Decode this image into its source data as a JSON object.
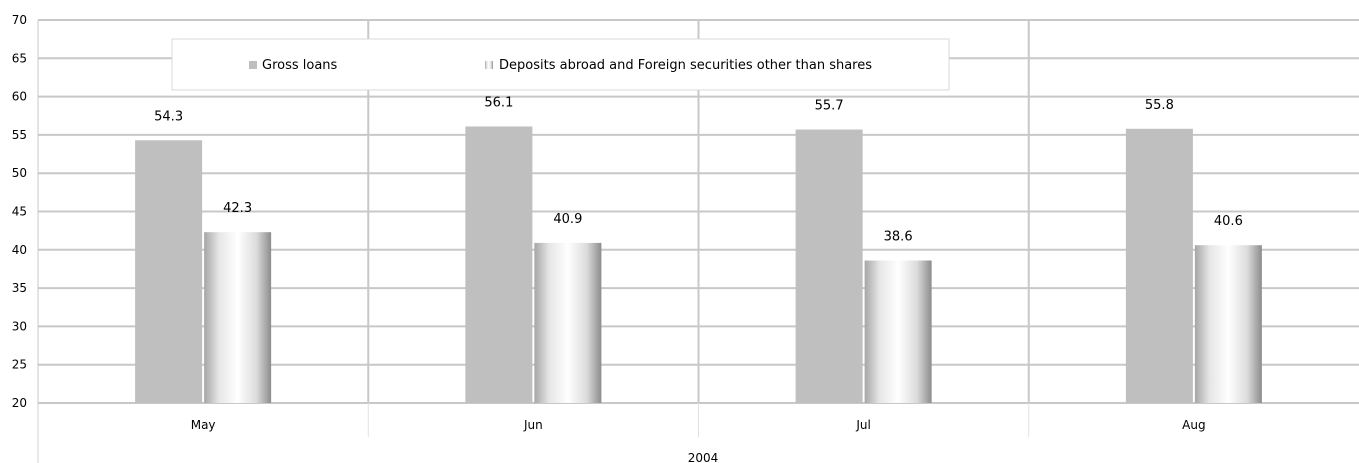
{
  "chart_data": {
    "type": "bar",
    "categories": [
      "May",
      "Jun",
      "Jul",
      "Aug"
    ],
    "group_label": "2004",
    "series": [
      {
        "name": "Gross loans",
        "values": [
          54.3,
          56.1,
          55.7,
          55.8
        ],
        "data_labels": [
          "54.3",
          "56.1",
          "55.7",
          "55.8"
        ],
        "color": "#bfbfbf"
      },
      {
        "name": "Deposits abroad and Foreign securities other than shares",
        "values": [
          42.3,
          40.9,
          38.6,
          40.6
        ],
        "data_labels": [
          "42.3",
          "40.9",
          "38.6",
          "40.6"
        ],
        "color": "#9a9a9a"
      }
    ],
    "ylim": [
      20,
      70
    ],
    "yticks": [
      "20",
      "25",
      "30",
      "35",
      "40",
      "45",
      "50",
      "55",
      "60",
      "65",
      "70"
    ],
    "grid": true,
    "legend_position": "top"
  }
}
